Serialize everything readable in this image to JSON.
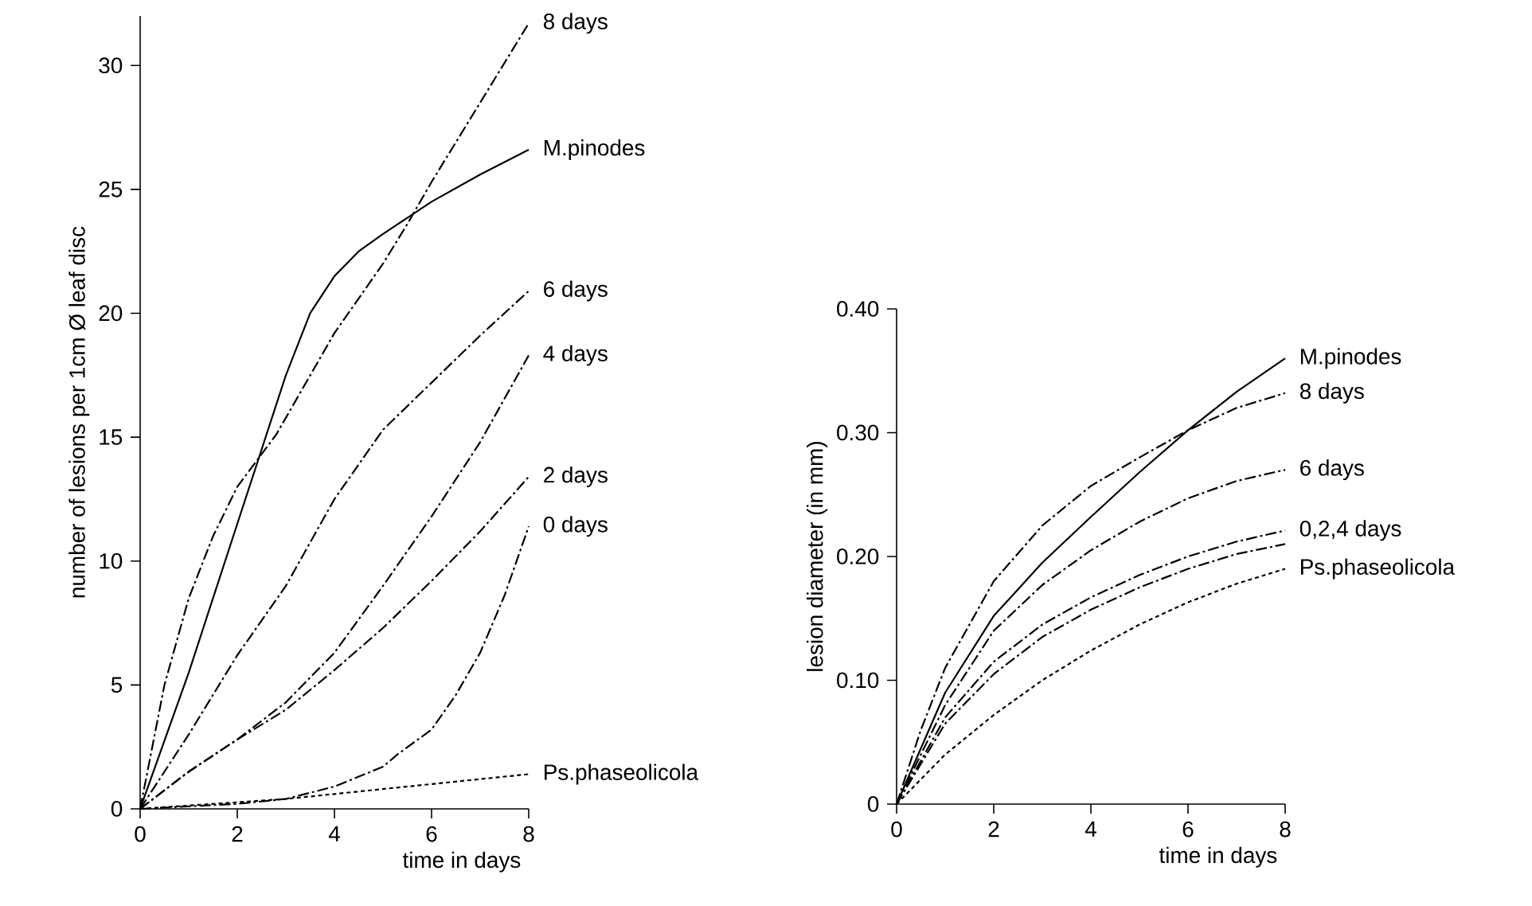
{
  "chart_data": [
    {
      "type": "line",
      "xlabel": "time in days",
      "ylabel": "number of lesions per 1cm Ø leaf disc",
      "xlim": [
        0,
        8
      ],
      "ylim": [
        0,
        32
      ],
      "xticks": [
        0,
        2,
        4,
        6,
        8
      ],
      "yticks": [
        0,
        5,
        10,
        15,
        20,
        25,
        30
      ],
      "series": [
        {
          "name": "8 days",
          "color": "#000000",
          "line_style": "dashed",
          "x": [
            0,
            0.5,
            1,
            1.5,
            2,
            2.8,
            4,
            5,
            5.5,
            6,
            7,
            8
          ],
          "values": [
            0,
            5,
            8.5,
            11,
            13,
            15.1,
            19.2,
            22,
            23.6,
            25.3,
            28.5,
            31.7
          ]
        },
        {
          "name": "M.pinodes",
          "color": "#000000",
          "line_style": "solid",
          "x": [
            0,
            1,
            2,
            3,
            3.5,
            4,
            4.5,
            5,
            6,
            7,
            8
          ],
          "values": [
            0,
            5.5,
            11.5,
            17.5,
            20,
            21.5,
            22.5,
            23.2,
            24.5,
            25.6,
            26.6
          ]
        },
        {
          "name": "6 days",
          "color": "#000000",
          "line_style": "dashed",
          "x": [
            0,
            1,
            2,
            3,
            4,
            5,
            6,
            7,
            8
          ],
          "values": [
            0,
            3,
            6.2,
            9,
            12.5,
            15.3,
            17.2,
            19.1,
            20.9
          ]
        },
        {
          "name": "4 days",
          "color": "#000000",
          "line_style": "dashed",
          "x": [
            0,
            1,
            2,
            3,
            4,
            5,
            6,
            7,
            8
          ],
          "values": [
            0,
            1.5,
            2.8,
            4.3,
            6.3,
            9,
            11.8,
            14.8,
            18.3
          ]
        },
        {
          "name": "2 days",
          "color": "#000000",
          "line_style": "dashed",
          "x": [
            0,
            1,
            2,
            3,
            4,
            5,
            6,
            7,
            8
          ],
          "values": [
            0,
            1.5,
            2.8,
            4,
            5.6,
            7.3,
            9.2,
            11.2,
            13.4
          ]
        },
        {
          "name": "0 days",
          "color": "#000000",
          "line_style": "dashed",
          "x": [
            0,
            2,
            3,
            4,
            5,
            5.3,
            6,
            6.5,
            7,
            7.5,
            8
          ],
          "values": [
            0,
            0.2,
            0.4,
            0.9,
            1.7,
            2.2,
            3.2,
            4.6,
            6.3,
            8.6,
            11.4
          ]
        },
        {
          "name": "Ps.phaseolicola",
          "color": "#000000",
          "line_style": "dotted",
          "x": [
            0,
            3,
            4,
            6,
            8
          ],
          "values": [
            0,
            0.4,
            0.6,
            1.0,
            1.4
          ]
        }
      ]
    },
    {
      "type": "line",
      "xlabel": "time in days",
      "ylabel": "lesion diameter (in mm)",
      "xlim": [
        0,
        8
      ],
      "ylim": [
        0,
        0.4
      ],
      "xticks": [
        0,
        2,
        4,
        6,
        8
      ],
      "yticks": [
        0,
        {
          "value": 0.1,
          "label": "0.10"
        },
        {
          "value": 0.2,
          "label": "0.20"
        },
        {
          "value": 0.3,
          "label": "0.30"
        },
        {
          "value": 0.4,
          "label": "0.40"
        }
      ],
      "series": [
        {
          "name": "M.pinodes",
          "color": "#000000",
          "line_style": "solid",
          "x": [
            0,
            1,
            2,
            3,
            4,
            5,
            6,
            7,
            8
          ],
          "values": [
            0,
            0.09,
            0.152,
            0.195,
            0.232,
            0.268,
            0.302,
            0.333,
            0.36
          ]
        },
        {
          "name": "8 days",
          "color": "#000000",
          "line_style": "dashed",
          "x": [
            0,
            0.5,
            1,
            2,
            3,
            4,
            5,
            6,
            7,
            8
          ],
          "values": [
            0,
            0.06,
            0.11,
            0.18,
            0.225,
            0.257,
            0.28,
            0.302,
            0.32,
            0.332
          ]
        },
        {
          "name": "6 days",
          "color": "#000000",
          "line_style": "dashed",
          "x": [
            0,
            1,
            2,
            3,
            4,
            5,
            6,
            7,
            8
          ],
          "values": [
            0,
            0.08,
            0.14,
            0.177,
            0.205,
            0.228,
            0.247,
            0.261,
            0.27
          ]
        },
        {
          "name": "0,2,4 days",
          "color": "#000000",
          "line_style": "dashed",
          "x": [
            0,
            1,
            2,
            3,
            4,
            5,
            6,
            7,
            8
          ],
          "values": [
            0,
            0.07,
            0.115,
            0.145,
            0.167,
            0.185,
            0.2,
            0.212,
            0.221
          ]
        },
        {
          "color": "#000000",
          "line_style": "dashed",
          "x": [
            0,
            1,
            2,
            3,
            4,
            5,
            6,
            7,
            8
          ],
          "values": [
            0,
            0.065,
            0.105,
            0.135,
            0.157,
            0.175,
            0.19,
            0.202,
            0.21
          ]
        },
        {
          "name": "Ps.phaseolicola",
          "color": "#000000",
          "line_style": "dotted",
          "x": [
            0,
            1,
            2,
            3,
            4,
            5,
            6,
            7,
            8
          ],
          "values": [
            0,
            0.04,
            0.072,
            0.1,
            0.124,
            0.145,
            0.163,
            0.178,
            0.19
          ]
        }
      ]
    }
  ]
}
